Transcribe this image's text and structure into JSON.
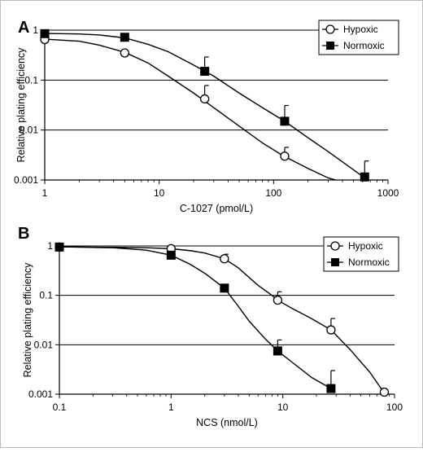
{
  "chart_data": [
    {
      "type": "line",
      "panel_label": "A",
      "xlabel": "C-1027 (pmol/L)",
      "ylabel": "Relative plating efficiency",
      "x_scale": "log",
      "y_scale": "log",
      "xlim": [
        1,
        1000
      ],
      "ylim": [
        0.001,
        1
      ],
      "x_ticks": [
        "1",
        "10",
        "100",
        "1000"
      ],
      "y_ticks": [
        "1",
        "0.1",
        "0.01",
        "0.001"
      ],
      "grid": "horizontal",
      "legend_position": "top-right",
      "series": [
        {
          "name": "Hypoxic",
          "marker": "open-circle",
          "x": [
            1,
            5,
            25,
            125
          ],
          "y": [
            0.65,
            0.35,
            0.042,
            0.003
          ],
          "y_err_upper": [
            null,
            null,
            0.078,
            0.0045
          ],
          "curve": [
            [
              1,
              0.66
            ],
            [
              2,
              0.6
            ],
            [
              3,
              0.5
            ],
            [
              5,
              0.36
            ],
            [
              8,
              0.22
            ],
            [
              12,
              0.12
            ],
            [
              20,
              0.055
            ],
            [
              30,
              0.028
            ],
            [
              50,
              0.012
            ],
            [
              80,
              0.0055
            ],
            [
              120,
              0.0031
            ],
            [
              200,
              0.0017
            ],
            [
              300,
              0.0011
            ],
            [
              350,
              0.001
            ]
          ]
        },
        {
          "name": "Normoxic",
          "marker": "filled-square",
          "x": [
            1,
            5,
            25,
            125,
            625
          ],
          "y": [
            0.85,
            0.72,
            0.15,
            0.015,
            0.00115
          ],
          "y_err_upper": [
            null,
            null,
            0.29,
            0.031,
            0.0024
          ],
          "curve": [
            [
              1,
              0.86
            ],
            [
              2,
              0.84
            ],
            [
              3,
              0.8
            ],
            [
              5,
              0.7
            ],
            [
              8,
              0.52
            ],
            [
              12,
              0.37
            ],
            [
              20,
              0.2
            ],
            [
              30,
              0.12
            ],
            [
              50,
              0.055
            ],
            [
              80,
              0.028
            ],
            [
              125,
              0.015
            ],
            [
              200,
              0.007
            ],
            [
              300,
              0.0037
            ],
            [
              450,
              0.0019
            ],
            [
              625,
              0.0011
            ],
            [
              700,
              0.00095
            ]
          ]
        }
      ]
    },
    {
      "type": "line",
      "panel_label": "B",
      "xlabel": "NCS (nmol/L)",
      "ylabel": "Relative plating efficiency",
      "x_scale": "log",
      "y_scale": "log",
      "xlim": [
        0.1,
        100
      ],
      "ylim": [
        0.001,
        1
      ],
      "x_ticks": [
        "0.1",
        "1",
        "10",
        "100"
      ],
      "y_ticks": [
        "1",
        "0.1",
        "0.01",
        "0.001"
      ],
      "grid": "horizontal",
      "legend_position": "top-right",
      "series": [
        {
          "name": "Hypoxic",
          "marker": "open-circle",
          "x": [
            0.1,
            1,
            3,
            9,
            27,
            81
          ],
          "y": [
            0.95,
            0.88,
            0.55,
            0.08,
            0.02,
            0.0011
          ],
          "y_err_upper": [
            null,
            null,
            0.68,
            0.118,
            0.034,
            null
          ],
          "curve": [
            [
              0.1,
              0.96
            ],
            [
              0.3,
              0.94
            ],
            [
              0.6,
              0.92
            ],
            [
              1,
              0.88
            ],
            [
              1.5,
              0.8
            ],
            [
              2,
              0.72
            ],
            [
              3,
              0.55
            ],
            [
              4,
              0.36
            ],
            [
              5,
              0.23
            ],
            [
              6,
              0.16
            ],
            [
              8,
              0.1
            ],
            [
              9,
              0.08
            ],
            [
              12,
              0.055
            ],
            [
              18,
              0.034
            ],
            [
              27,
              0.02
            ],
            [
              40,
              0.008
            ],
            [
              60,
              0.0028
            ],
            [
              81,
              0.00105
            ]
          ]
        },
        {
          "name": "Normoxic",
          "marker": "filled-square",
          "x": [
            0.1,
            1,
            3,
            9,
            27
          ],
          "y": [
            0.95,
            0.65,
            0.14,
            0.0075,
            0.0013
          ],
          "y_err_upper": [
            null,
            null,
            0.16,
            0.0125,
            0.003
          ],
          "curve": [
            [
              0.1,
              0.96
            ],
            [
              0.3,
              0.92
            ],
            [
              0.6,
              0.82
            ],
            [
              1,
              0.65
            ],
            [
              1.5,
              0.42
            ],
            [
              2,
              0.28
            ],
            [
              3,
              0.14
            ],
            [
              4,
              0.06
            ],
            [
              5,
              0.03
            ],
            [
              7,
              0.013
            ],
            [
              9,
              0.0075
            ],
            [
              12,
              0.0045
            ],
            [
              18,
              0.0022
            ],
            [
              27,
              0.0013
            ]
          ]
        }
      ]
    }
  ]
}
